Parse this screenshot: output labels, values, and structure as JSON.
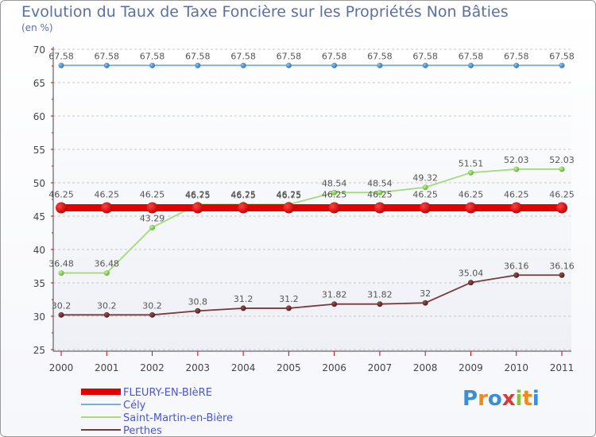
{
  "chart_data": {
    "type": "line",
    "title": "Evolution du Taux de Taxe Foncière sur les Propriétés Non Bâties",
    "unit_label": "(en %)",
    "x": [
      "2000",
      "2001",
      "2002",
      "2003",
      "2004",
      "2005",
      "2006",
      "2007",
      "2008",
      "2009",
      "2010",
      "2011"
    ],
    "ylim": [
      25,
      70
    ],
    "yticks": [
      25,
      30,
      35,
      40,
      45,
      50,
      55,
      60,
      65,
      70
    ],
    "grid": "horizontal dashed",
    "series": [
      {
        "name": "FLEURY-EN-BIèRE",
        "color": "#e50000",
        "values": [
          46.25,
          46.25,
          46.25,
          46.25,
          46.25,
          46.25,
          46.25,
          46.25,
          46.25,
          46.25,
          46.25,
          46.25
        ],
        "labels": [
          "46.25",
          "46.25",
          "46.25",
          "46.25",
          "46.25",
          "46.25",
          "46.25",
          "46.25",
          "46.25",
          "46.25",
          "46.25",
          "46.25"
        ]
      },
      {
        "name": "Cély",
        "color": "#7eadd8",
        "values": [
          67.58,
          67.58,
          67.58,
          67.58,
          67.58,
          67.58,
          67.58,
          67.58,
          67.58,
          67.58,
          67.58,
          67.58
        ],
        "labels": [
          "67.58",
          "67.58",
          "67.58",
          "67.58",
          "67.58",
          "67.58",
          "67.58",
          "67.58",
          "67.58",
          "67.58",
          "67.58",
          "67.58"
        ]
      },
      {
        "name": "Saint-Martin-en-Bière",
        "color": "#a3dc7a",
        "values": [
          36.48,
          36.48,
          43.29,
          46.75,
          46.75,
          46.75,
          48.54,
          48.54,
          49.32,
          51.51,
          52.03,
          52.03
        ],
        "labels": [
          "36.48",
          "36.48",
          "43.29",
          "46.75",
          "46.75",
          "46.75",
          "48.54",
          "48.54",
          "49.32",
          "51.51",
          "52.03",
          "52.03"
        ]
      },
      {
        "name": "Perthes",
        "color": "#7a3a3a",
        "values": [
          30.2,
          30.2,
          30.2,
          30.8,
          31.2,
          31.2,
          31.82,
          31.82,
          32,
          35.04,
          36.16,
          36.16
        ],
        "labels": [
          "30.2",
          "30.2",
          "30.2",
          "30.8",
          "31.2",
          "31.2",
          "31.82",
          "31.82",
          "32",
          "35.04",
          "36.16",
          "36.16"
        ]
      }
    ]
  },
  "logo": {
    "text": "Proxiti",
    "letters": [
      "P",
      "r",
      "o",
      "x",
      "i",
      "t",
      "i"
    ],
    "colors": [
      "#3a8fd6",
      "#f08a1c",
      "#3a8fd6",
      "#d63a3a",
      "#8ac43f",
      "#f08a1c",
      "#3a8fd6"
    ]
  }
}
